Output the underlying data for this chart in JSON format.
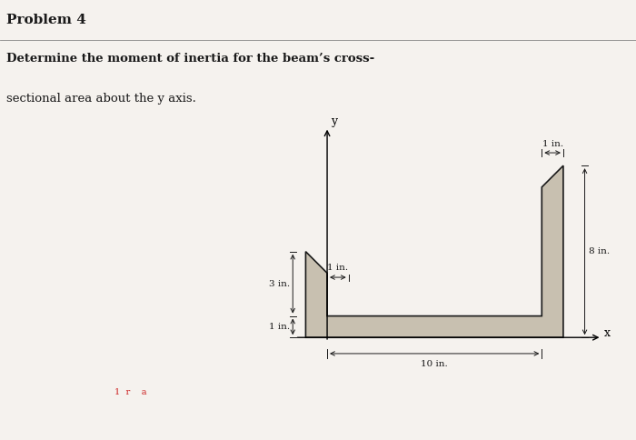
{
  "title": "Problem 4",
  "problem_text_line1": "Determine the moment of inertia for the beam’s cross-",
  "problem_text_line2": "sectional area about the y axis.",
  "bg_color": "#f0ede8",
  "shape_fill": "#c8c0b0",
  "shape_edge": "#1a1a1a",
  "axis_color": "#1a1a1a",
  "dim_color": "#1a1a1a",
  "page_bg": "#f5f2ee",
  "fig_width": 7.0,
  "fig_height": 4.84,
  "dpi": 100
}
